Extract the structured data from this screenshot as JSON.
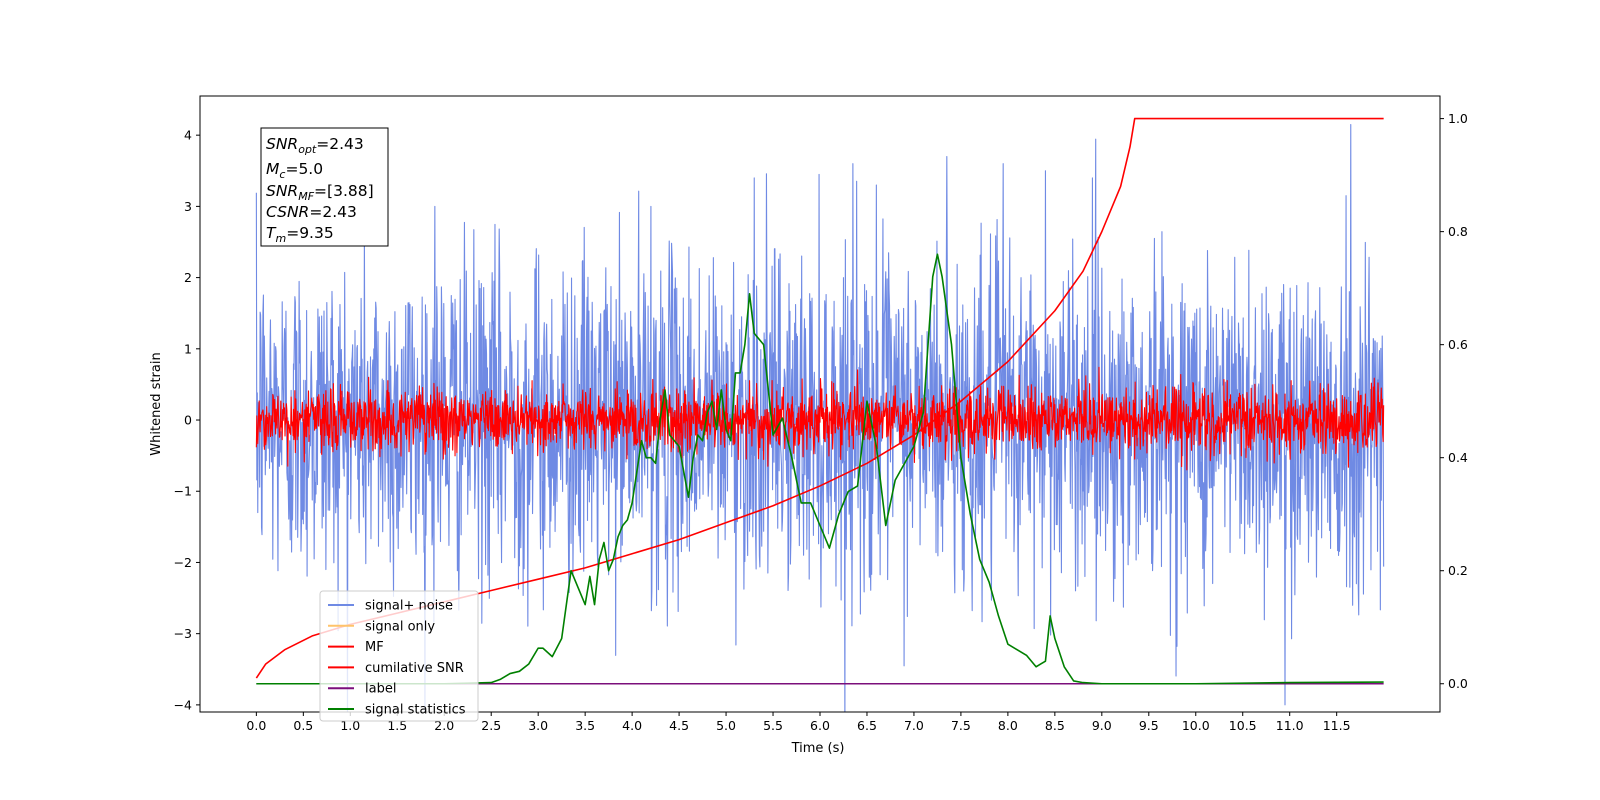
{
  "chart_data": {
    "type": "line",
    "xlabel": "Time (s)",
    "ylabel": "Whitened strain",
    "xlim": [
      -0.6,
      12.6
    ],
    "ylim": [
      -4.1,
      4.55
    ],
    "y2lim": [
      -0.05,
      1.04
    ],
    "x_ticks": [
      0.0,
      0.5,
      1.0,
      1.5,
      2.0,
      2.5,
      3.0,
      3.5,
      4.0,
      4.5,
      5.0,
      5.5,
      6.0,
      6.5,
      7.0,
      7.5,
      8.0,
      8.5,
      9.0,
      9.5,
      10.0,
      10.5,
      11.0,
      11.5
    ],
    "x_tick_labels": [
      "0.0",
      "0.5",
      "1.0",
      "1.5",
      "2.0",
      "2.5",
      "3.0",
      "3.5",
      "4.0",
      "4.5",
      "5.0",
      "5.5",
      "6.0",
      "6.5",
      "7.0",
      "7.5",
      "8.0",
      "8.5",
      "9.0",
      "9.5",
      "10.0",
      "10.5",
      "11.0",
      "11.5"
    ],
    "y_ticks": [
      -4,
      -3,
      -2,
      -1,
      0,
      1,
      2,
      3,
      4
    ],
    "y_tick_labels": [
      "−4",
      "−3",
      "−2",
      "−1",
      "0",
      "1",
      "2",
      "3",
      "4"
    ],
    "y2_ticks": [
      0.0,
      0.2,
      0.4,
      0.6,
      0.8,
      1.0
    ],
    "y2_tick_labels": [
      "0.0",
      "0.2",
      "0.4",
      "0.6",
      "0.8",
      "1.0"
    ],
    "grid": false,
    "legend_placement": "lower-left",
    "info_box": {
      "snr_opt": "2.43",
      "mc": "5.0",
      "snr_mf": "[3.88]",
      "csnr": "2.43",
      "tm": "9.35"
    },
    "series": [
      {
        "name": "signal+ noise",
        "axis": "left",
        "color": "#6f8ae4",
        "kind": "noise",
        "t_range": [
          0.0,
          12.0
        ],
        "std": 1.15,
        "peaks": [
          [
            0.05,
            1.0
          ],
          [
            1.9,
            3.0
          ],
          [
            4.2,
            3.0
          ],
          [
            5.3,
            3.4
          ],
          [
            6.35,
            3.6
          ],
          [
            6.6,
            3.3
          ],
          [
            7.35,
            3.7
          ],
          [
            7.95,
            3.6
          ],
          [
            8.4,
            3.5
          ],
          [
            8.9,
            3.4
          ],
          [
            11.65,
            4.15
          ],
          [
            11.6,
            3.15
          ],
          [
            10.95,
            -4.0
          ]
        ]
      },
      {
        "name": "signal only",
        "axis": "left",
        "color": "#ffc36a",
        "kind": "hidden",
        "values": []
      },
      {
        "name": "MF",
        "axis": "left",
        "color": "#ff0000",
        "kind": "noise",
        "t_range": [
          0.0,
          12.0
        ],
        "std": 0.23
      },
      {
        "name": "cumilative SNR",
        "axis": "right",
        "color": "#ff0000",
        "kind": "curve",
        "x": [
          0.0,
          0.1,
          0.3,
          0.6,
          1.0,
          1.5,
          2.0,
          2.5,
          3.0,
          3.5,
          4.0,
          4.5,
          5.0,
          5.5,
          6.0,
          6.5,
          7.0,
          7.5,
          8.0,
          8.5,
          8.8,
          9.0,
          9.2,
          9.3,
          9.35,
          10.0,
          11.0,
          12.0
        ],
        "y": [
          0.01,
          0.035,
          0.06,
          0.085,
          0.105,
          0.125,
          0.145,
          0.165,
          0.185,
          0.205,
          0.23,
          0.255,
          0.285,
          0.315,
          0.35,
          0.39,
          0.44,
          0.5,
          0.57,
          0.66,
          0.73,
          0.8,
          0.88,
          0.95,
          1.0,
          1.0,
          1.0,
          1.0
        ]
      },
      {
        "name": "label",
        "axis": "right",
        "color": "#7b0f7b",
        "kind": "curve",
        "x": [
          0.0,
          12.0
        ],
        "y": [
          0.0,
          0.0
        ]
      },
      {
        "name": "signal statistics",
        "axis": "right",
        "color": "#008000",
        "kind": "curve",
        "x": [
          0.0,
          2.0,
          2.5,
          2.6,
          2.7,
          2.8,
          2.9,
          3.0,
          3.05,
          3.15,
          3.25,
          3.35,
          3.45,
          3.5,
          3.55,
          3.6,
          3.65,
          3.7,
          3.75,
          3.8,
          3.85,
          3.9,
          3.95,
          4.0,
          4.1,
          4.15,
          4.2,
          4.25,
          4.3,
          4.35,
          4.4,
          4.5,
          4.6,
          4.65,
          4.7,
          4.75,
          4.8,
          4.85,
          4.9,
          4.95,
          5.0,
          5.05,
          5.1,
          5.15,
          5.2,
          5.25,
          5.3,
          5.4,
          5.5,
          5.6,
          5.7,
          5.8,
          5.9,
          6.0,
          6.1,
          6.2,
          6.3,
          6.4,
          6.5,
          6.6,
          6.7,
          6.8,
          6.9,
          7.0,
          7.1,
          7.2,
          7.25,
          7.3,
          7.4,
          7.5,
          7.6,
          7.7,
          7.8,
          7.9,
          8.0,
          8.1,
          8.2,
          8.3,
          8.35,
          8.4,
          8.45,
          8.5,
          8.6,
          8.7,
          8.8,
          9.0,
          10.0,
          11.0,
          12.0
        ],
        "y": [
          0.0,
          0.0,
          0.002,
          0.008,
          0.018,
          0.022,
          0.035,
          0.063,
          0.063,
          0.048,
          0.08,
          0.2,
          0.16,
          0.14,
          0.19,
          0.14,
          0.22,
          0.25,
          0.2,
          0.22,
          0.26,
          0.28,
          0.29,
          0.32,
          0.43,
          0.4,
          0.4,
          0.39,
          0.47,
          0.52,
          0.44,
          0.42,
          0.33,
          0.4,
          0.44,
          0.43,
          0.48,
          0.5,
          0.45,
          0.52,
          0.45,
          0.43,
          0.55,
          0.55,
          0.6,
          0.69,
          0.62,
          0.6,
          0.44,
          0.47,
          0.4,
          0.32,
          0.32,
          0.28,
          0.24,
          0.3,
          0.34,
          0.35,
          0.5,
          0.42,
          0.28,
          0.36,
          0.39,
          0.42,
          0.48,
          0.72,
          0.76,
          0.72,
          0.6,
          0.4,
          0.3,
          0.22,
          0.18,
          0.12,
          0.07,
          0.06,
          0.05,
          0.03,
          0.035,
          0.04,
          0.12,
          0.08,
          0.03,
          0.005,
          0.002,
          0.0,
          0.0,
          0.002,
          0.003
        ]
      }
    ]
  }
}
